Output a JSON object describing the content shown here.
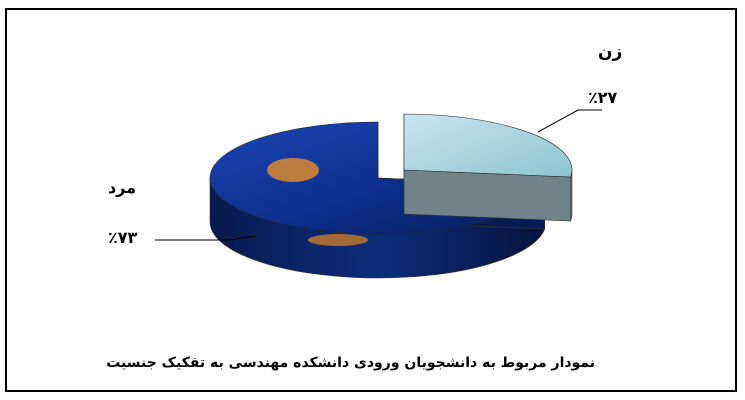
{
  "chart_data": {
    "type": "pie",
    "style": "3d-exploded",
    "categories": [
      "زن",
      "مرد"
    ],
    "values": [
      27,
      73
    ],
    "labels": [
      "٪۲۷",
      "٪۷۳"
    ],
    "colors": [
      "#a9d4df",
      "#0b2f86"
    ],
    "title": "",
    "caption": "نمودار مربوط به دانشجویان ورودی دانشکده مهندسی به تفکیک جنسیت",
    "legend": "none"
  }
}
